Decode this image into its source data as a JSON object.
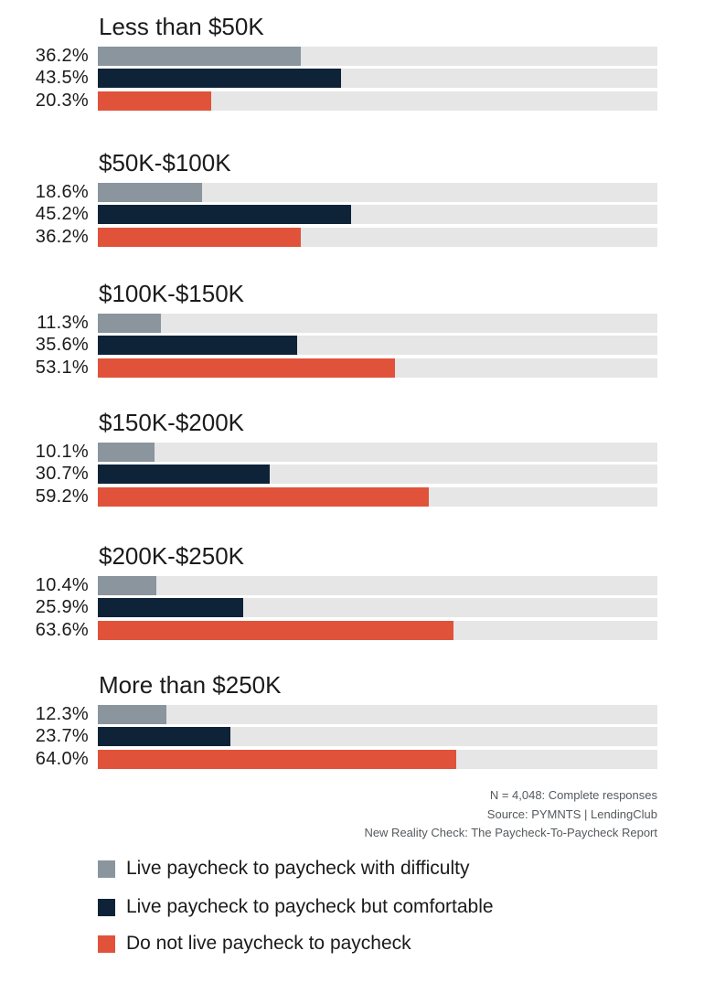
{
  "chart_data": {
    "type": "bar",
    "orientation": "horizontal",
    "value_suffix": "%",
    "xlim": [
      0,
      100
    ],
    "categories": [
      "Less than $50K",
      "$50K-$100K",
      "$100K-$150K",
      "$150K-$200K",
      "$200K-$250K",
      "More than $250K"
    ],
    "series": [
      {
        "name": "Live paycheck to paycheck with difficulty",
        "color": "#8a959e",
        "values": [
          36.2,
          18.6,
          11.3,
          10.1,
          10.4,
          12.3
        ]
      },
      {
        "name": "Live paycheck to paycheck but comfortable",
        "color": "#0e2338",
        "values": [
          43.5,
          45.2,
          35.6,
          30.7,
          25.9,
          23.7
        ]
      },
      {
        "name": "Do not live paycheck to paycheck",
        "color": "#e0533a",
        "values": [
          20.3,
          36.2,
          53.1,
          59.2,
          63.6,
          64.0
        ]
      }
    ],
    "labels": [
      [
        "36.2%",
        "43.5%",
        "20.3%"
      ],
      [
        "18.6%",
        "45.2%",
        "36.2%"
      ],
      [
        "11.3%",
        "35.6%",
        "53.1%"
      ],
      [
        "10.1%",
        "30.7%",
        "59.2%"
      ],
      [
        "10.4%",
        "25.9%",
        "63.6%"
      ],
      [
        "12.3%",
        "23.7%",
        "64.0%"
      ]
    ],
    "legend_position": "bottom-left",
    "track_color": "#e6e6e7"
  },
  "notes": {
    "sample": "N = 4,048: Complete responses",
    "source": "Source: PYMNTS  |  LendingClub",
    "report": "New Reality Check: The Paycheck-To-Paycheck Report"
  }
}
